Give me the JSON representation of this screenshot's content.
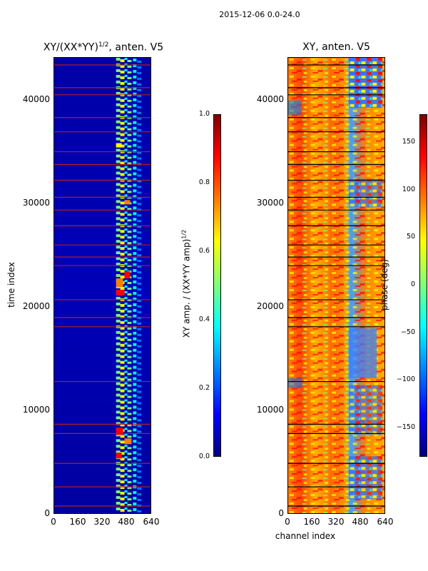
{
  "figure": {
    "suptitle": "2015-12-06 0.0-24.0",
    "x_axis_label": "channel index"
  },
  "colors": {
    "jet": [
      "#00007f",
      "#0000ff",
      "#007fff",
      "#00ffff",
      "#7fff7f",
      "#ffff00",
      "#ff7f00",
      "#ff0000",
      "#7f0000"
    ]
  },
  "chart_data": [
    {
      "type": "heatmap",
      "title_main": "XY/(XX*YY)",
      "title_exp": "1/2",
      "title_suffix": ", anten. V5",
      "ylabel": "time index",
      "xlabel": "",
      "xlim": [
        0,
        640
      ],
      "ylim": [
        0,
        44200
      ],
      "x_ticks": [
        0,
        160,
        320,
        480,
        640
      ],
      "y_ticks": [
        0,
        10000,
        20000,
        30000,
        40000
      ],
      "colorbar": {
        "label_main": "XY amp. / (XX*YY amp)",
        "label_exp": "1/2",
        "range": [
          0.0,
          1.0
        ],
        "ticks": [
          "0.0",
          "0.2",
          "0.4",
          "0.6",
          "0.8",
          "1.0"
        ]
      }
    },
    {
      "type": "heatmap",
      "title_main": "XY, anten. V5",
      "ylabel": "",
      "xlabel": "channel index",
      "xlim": [
        0,
        640
      ],
      "ylim": [
        0,
        44200
      ],
      "x_ticks": [
        0,
        160,
        320,
        480,
        640
      ],
      "y_ticks": [
        0,
        10000,
        20000,
        30000,
        40000
      ],
      "colorbar": {
        "label_main": "phase (deg)",
        "range": [
          -180,
          180
        ],
        "ticks": [
          "150",
          "100",
          "50",
          "0",
          "−50",
          "−100",
          "−150"
        ],
        "tick_values": [
          150,
          100,
          50,
          0,
          -50,
          -100,
          -150
        ]
      }
    }
  ]
}
